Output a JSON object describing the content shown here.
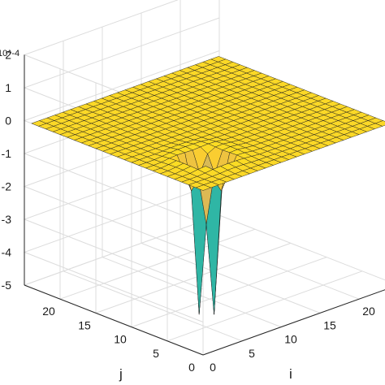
{
  "chart_data": {
    "type": "surface",
    "title": "",
    "xlabel": "i",
    "ylabel": "j",
    "zlabel": "",
    "z_multiplier": "10^-4",
    "x_ticks": [
      "0",
      "5",
      "10",
      "15",
      "20"
    ],
    "y_ticks": [
      "0",
      "5",
      "10",
      "15",
      "20"
    ],
    "z_ticks": [
      "-5",
      "-4",
      "-3",
      "-2",
      "-1",
      "0",
      "1",
      "2"
    ],
    "xlim": [
      0,
      25
    ],
    "ylim": [
      0,
      25
    ],
    "zlim": [
      -5,
      2
    ],
    "grid": true,
    "colormap": "parula",
    "surface_color_flat": "#61d25f",
    "features": [
      {
        "i": 6,
        "j": 6,
        "z": 0.3,
        "kind": "peak"
      },
      {
        "i": 5,
        "j": 6,
        "z": -4.1,
        "kind": "trough"
      },
      {
        "i": 6,
        "j": 5,
        "z": -4.1,
        "kind": "trough"
      }
    ],
    "baseline_z": 0
  }
}
